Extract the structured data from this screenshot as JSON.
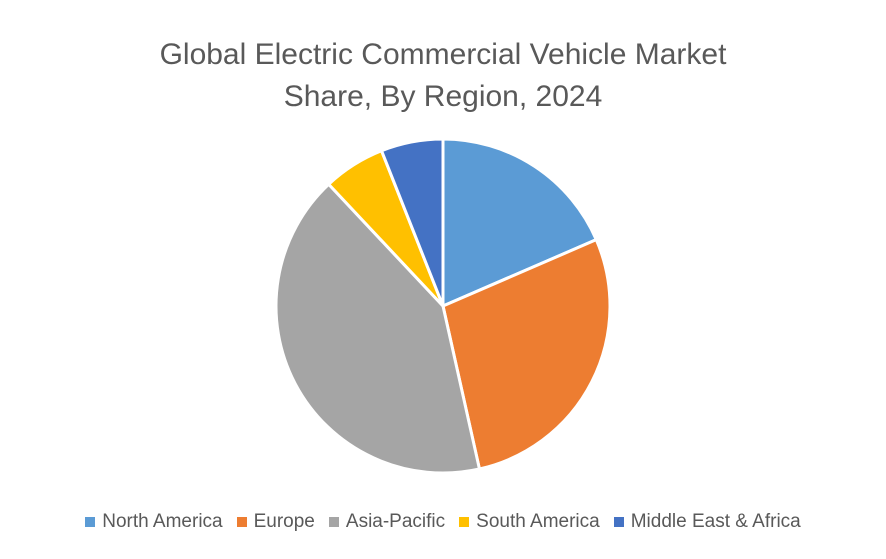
{
  "chart_data": {
    "type": "pie",
    "title": "Global Electric Commercial Vehicle Market Share, By Region, 2024",
    "title_lines": [
      "Global Electric Commercial Vehicle Market",
      "Share, By Region, 2024"
    ],
    "categories": [
      "North America",
      "Europe",
      "Asia-Pacific",
      "South America",
      "Middle East & Africa"
    ],
    "values": [
      18.5,
      28.0,
      41.5,
      6.0,
      6.0
    ],
    "unit": "%",
    "colors": [
      "#5B9BD5",
      "#ED7D31",
      "#A5A5A5",
      "#FFC000",
      "#4472C4"
    ],
    "legend_position": "bottom",
    "start_angle": "top, clockwise"
  },
  "legend": {
    "items": [
      {
        "label": "North America",
        "color": "#5B9BD5"
      },
      {
        "label": "Europe",
        "color": "#ED7D31"
      },
      {
        "label": "Asia-Pacific",
        "color": "#A5A5A5"
      },
      {
        "label": "South America",
        "color": "#FFC000"
      },
      {
        "label": "Middle East & Africa",
        "color": "#4472C4"
      }
    ]
  }
}
